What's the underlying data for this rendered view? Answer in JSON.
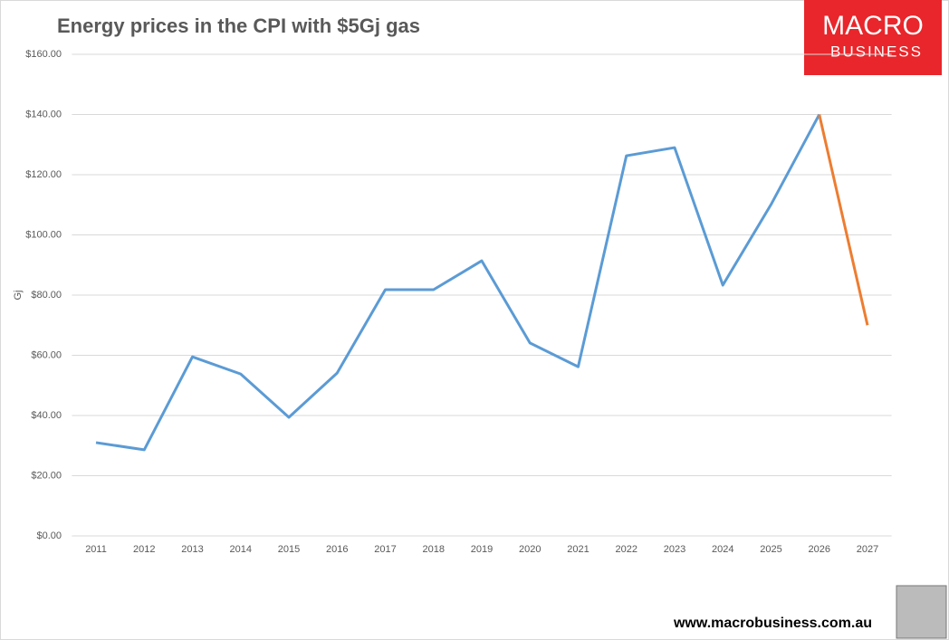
{
  "chart_data": {
    "type": "line",
    "title": "Energy prices in the CPI with $5Gj gas",
    "y_label": "Gj",
    "brand": {
      "line1": "MACRO",
      "line2": "BUSINESS"
    },
    "website": "www.macrobusiness.com.au",
    "categories": [
      "2011",
      "2012",
      "2013",
      "2014",
      "2015",
      "2016",
      "2017",
      "2018",
      "2019",
      "2020",
      "2021",
      "2022",
      "2023",
      "2024",
      "2025",
      "2026",
      "2027"
    ],
    "series": [
      {
        "color": "#5b9bd5",
        "values": [
          31.0,
          28.6,
          59.5,
          53.8,
          39.4,
          54.1,
          81.8,
          81.8,
          91.4,
          64.1,
          56.2,
          126.3,
          129.0,
          83.3,
          110.1,
          140,
          null
        ]
      },
      {
        "color": "#ed7d31",
        "values": [
          null,
          null,
          null,
          null,
          null,
          null,
          null,
          null,
          null,
          null,
          null,
          null,
          null,
          null,
          null,
          140,
          70
        ]
      }
    ],
    "ylim": [
      0,
      160
    ],
    "yticks": [
      {
        "value": 0,
        "label": "$0.00"
      },
      {
        "value": 20,
        "label": "$20.00"
      },
      {
        "value": 40,
        "label": "$40.00"
      },
      {
        "value": 60,
        "label": "$60.00"
      },
      {
        "value": 80,
        "label": "$80.00"
      },
      {
        "value": 100,
        "label": "$100.00"
      },
      {
        "value": 120,
        "label": "$120.00"
      },
      {
        "value": 140,
        "label": "$140.00"
      },
      {
        "value": 160,
        "label": "$160.00"
      }
    ],
    "grid": true
  }
}
